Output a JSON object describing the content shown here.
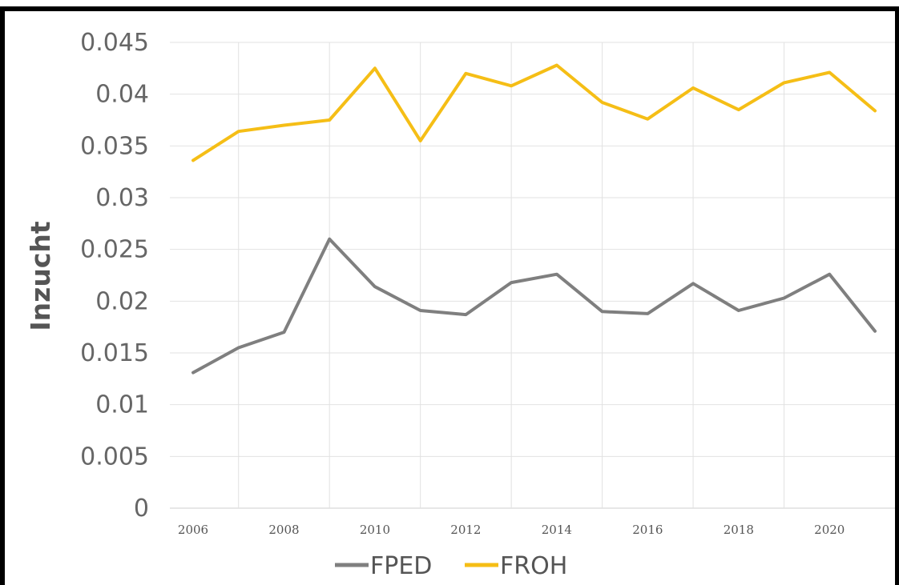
{
  "chart_data": {
    "type": "line",
    "title": "",
    "xlabel": "",
    "ylabel": "Inzucht",
    "x": [
      2006,
      2007,
      2008,
      2009,
      2010,
      2011,
      2012,
      2013,
      2014,
      2015,
      2016,
      2017,
      2018,
      2019,
      2020,
      2021
    ],
    "xticks": [
      "2006",
      "2008",
      "2010",
      "2012",
      "2014",
      "2016",
      "2018",
      "2020"
    ],
    "yticks": [
      "0",
      "0.005",
      "0.01",
      "0.015",
      "0.02",
      "0.025",
      "0.03",
      "0.035",
      "0.04",
      "0.045"
    ],
    "ylim": [
      0,
      0.045
    ],
    "grid": true,
    "legend_position": "bottom",
    "series": [
      {
        "name": "FPED",
        "color": "#7f7f7f",
        "values": [
          0.0131,
          0.0155,
          0.017,
          0.026,
          0.0214,
          0.0191,
          0.0187,
          0.0218,
          0.0226,
          0.019,
          0.0188,
          0.0217,
          0.0191,
          0.0203,
          0.0226,
          0.0171
        ]
      },
      {
        "name": "FROH",
        "color": "#f5be16",
        "values": [
          0.0336,
          0.0364,
          0.037,
          0.0375,
          0.0425,
          0.0355,
          0.042,
          0.0408,
          0.0428,
          0.0392,
          0.0376,
          0.0406,
          0.0385,
          0.0411,
          0.0421,
          0.0384
        ]
      }
    ]
  }
}
